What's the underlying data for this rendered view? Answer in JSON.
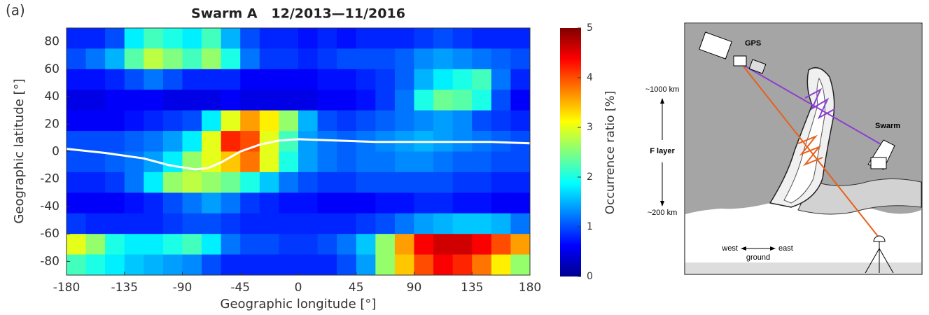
{
  "chart_data": {
    "type": "heatmap",
    "panel_label": "(a)",
    "title": "Swarm A   12/2013—11/2016",
    "x_label": "Geographic longitude [°]",
    "y_label": "Geographic latitude [°]",
    "colorbar_label": "Occurrence ratio [%]",
    "xlim": [
      -180,
      180
    ],
    "ylim": [
      -90,
      90
    ],
    "zlim": [
      0,
      5
    ],
    "xticks": [
      -180,
      -135,
      -90,
      -45,
      0,
      45,
      90,
      135,
      180
    ],
    "yticks": [
      80,
      60,
      40,
      20,
      0,
      -20,
      -40,
      -60,
      -80
    ],
    "zticks": [
      0,
      1,
      2,
      3,
      4,
      5
    ],
    "colormap": "jet",
    "values": [
      [
        0.8,
        0.8,
        1.0,
        1.8,
        2.2,
        2.0,
        1.8,
        2.2,
        1.5,
        1.0,
        0.8,
        0.8,
        0.7,
        0.8,
        0.7,
        0.8,
        0.8,
        0.8,
        0.9,
        1.0,
        0.9,
        0.8,
        0.8,
        0.8
      ],
      [
        1.0,
        1.2,
        1.5,
        2.3,
        2.8,
        2.5,
        2.2,
        2.6,
        2.0,
        1.2,
        0.9,
        0.9,
        0.8,
        0.9,
        1.0,
        1.0,
        1.0,
        1.1,
        1.3,
        1.4,
        1.3,
        1.2,
        1.1,
        1.0
      ],
      [
        0.7,
        0.7,
        0.8,
        1.0,
        1.2,
        1.0,
        0.8,
        0.8,
        0.8,
        0.6,
        0.6,
        0.6,
        0.6,
        0.7,
        0.7,
        0.8,
        0.9,
        1.1,
        1.5,
        1.8,
        2.0,
        2.2,
        1.2,
        0.8
      ],
      [
        0.5,
        0.5,
        0.6,
        0.6,
        0.6,
        0.5,
        0.5,
        0.5,
        0.6,
        0.5,
        0.5,
        0.5,
        0.5,
        0.6,
        0.6,
        0.7,
        0.9,
        1.2,
        2.0,
        2.4,
        2.3,
        2.0,
        1.0,
        0.6
      ],
      [
        0.6,
        0.6,
        0.6,
        0.7,
        0.8,
        0.9,
        1.0,
        1.8,
        3.0,
        3.6,
        3.2,
        2.6,
        1.5,
        1.0,
        0.9,
        1.0,
        1.1,
        1.2,
        1.3,
        1.4,
        1.3,
        1.0,
        0.9,
        0.8
      ],
      [
        1.0,
        1.0,
        1.0,
        1.1,
        1.2,
        1.4,
        1.8,
        3.0,
        4.2,
        4.0,
        3.0,
        2.2,
        1.4,
        1.2,
        1.1,
        1.2,
        1.3,
        1.4,
        1.5,
        1.4,
        1.3,
        1.2,
        1.1,
        1.0
      ],
      [
        1.0,
        1.0,
        1.1,
        1.2,
        1.4,
        1.8,
        2.6,
        3.0,
        3.4,
        3.8,
        3.0,
        2.0,
        1.4,
        1.2,
        1.1,
        1.2,
        1.2,
        1.3,
        1.3,
        1.2,
        1.1,
        1.1,
        1.0,
        1.0
      ],
      [
        0.8,
        0.8,
        0.9,
        1.2,
        1.8,
        2.6,
        2.8,
        2.6,
        2.4,
        2.0,
        1.6,
        1.2,
        1.0,
        0.9,
        0.9,
        1.0,
        1.0,
        1.0,
        1.0,
        1.0,
        0.9,
        0.9,
        0.8,
        0.8
      ],
      [
        0.6,
        0.6,
        0.6,
        0.7,
        0.8,
        1.0,
        1.2,
        1.4,
        1.2,
        0.9,
        0.8,
        0.7,
        0.7,
        0.6,
        0.6,
        0.6,
        0.7,
        0.7,
        0.8,
        0.8,
        0.7,
        0.7,
        0.6,
        0.6
      ],
      [
        0.9,
        0.8,
        0.8,
        0.8,
        0.8,
        0.9,
        1.0,
        1.0,
        0.9,
        0.8,
        0.8,
        0.8,
        0.8,
        0.8,
        0.8,
        0.9,
        1.0,
        1.2,
        1.4,
        1.5,
        1.6,
        1.6,
        1.5,
        1.2
      ],
      [
        3.0,
        2.6,
        2.0,
        1.8,
        1.8,
        2.0,
        2.2,
        1.8,
        1.2,
        1.0,
        1.0,
        0.9,
        0.9,
        1.0,
        1.2,
        1.6,
        2.6,
        3.6,
        4.4,
        4.6,
        4.6,
        4.4,
        4.0,
        3.6
      ],
      [
        2.2,
        2.0,
        1.8,
        1.6,
        1.5,
        1.4,
        1.3,
        1.0,
        0.8,
        0.8,
        0.8,
        0.8,
        0.8,
        0.8,
        1.0,
        1.4,
        2.6,
        3.4,
        4.0,
        4.4,
        4.2,
        3.8,
        3.2,
        2.6
      ]
    ],
    "equator": {
      "color": "#ffffff",
      "x": [
        -180,
        -150,
        -120,
        -100,
        -80,
        -70,
        -60,
        -45,
        -30,
        -15,
        0,
        30,
        60,
        90,
        120,
        150,
        180
      ],
      "y": [
        2,
        -1,
        -5,
        -10,
        -13,
        -12,
        -8,
        0,
        5,
        8,
        9,
        8,
        7,
        7,
        7,
        7,
        6
      ]
    }
  },
  "diagram": {
    "gps": "GPS",
    "swarm": "Swarm",
    "top_altitude": "~1000 km",
    "layer": "F layer",
    "bottom_altitude": "~200 km",
    "west": "west",
    "east": "east",
    "ground": "ground"
  }
}
